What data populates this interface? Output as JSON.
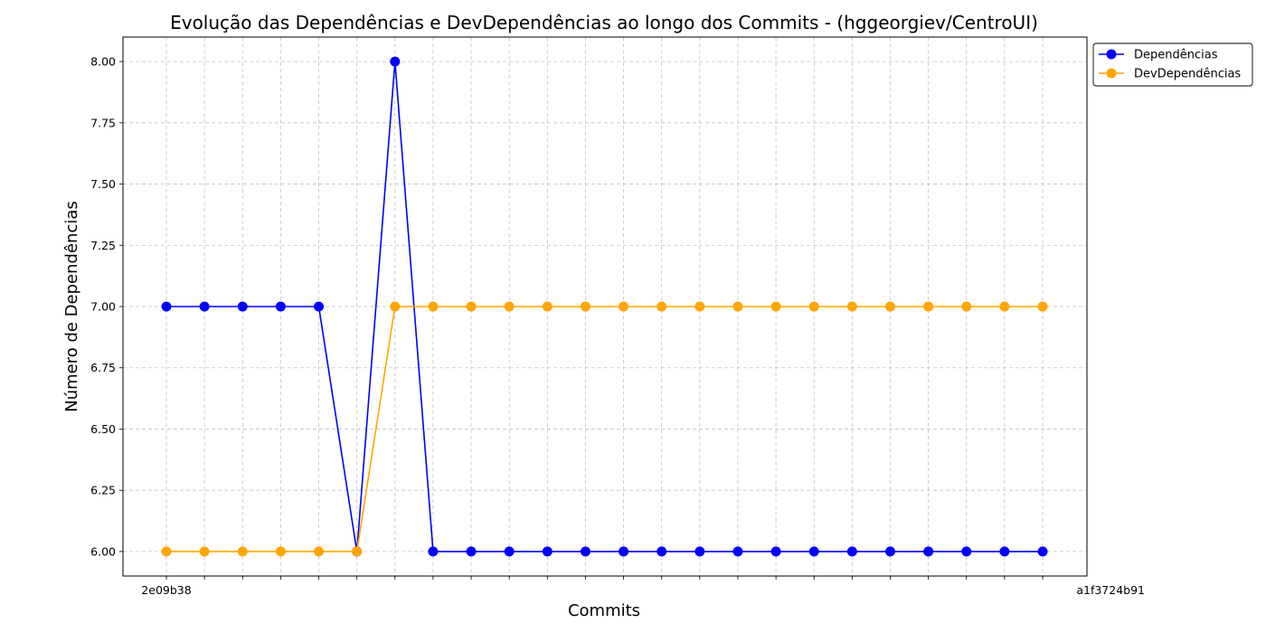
{
  "chart_data": {
    "type": "line",
    "title": "Evolução das Dependências e DevDependências ao longo dos Commits - (hggeorgiev/CentroUI)",
    "xlabel": "Commits",
    "ylabel": "Número de Dependências",
    "first_commit_label": "2e09b38",
    "last_commit_label": "a1f3724b91",
    "ylim": [
      5.9,
      8.1
    ],
    "yticks": [
      "6.00",
      "6.25",
      "6.50",
      "6.75",
      "7.00",
      "7.25",
      "7.50",
      "7.75",
      "8.00"
    ],
    "grid": true,
    "legend_position": "top-right-outside",
    "series": [
      {
        "name": "Dependências",
        "color": "#0000ff",
        "values": [
          7,
          7,
          7,
          7,
          7,
          6,
          8,
          6,
          6,
          6,
          6,
          6,
          6,
          6,
          6,
          6,
          6,
          6,
          6,
          6,
          6,
          6,
          6,
          6
        ]
      },
      {
        "name": "DevDependências",
        "color": "#ffa500",
        "values": [
          6,
          6,
          6,
          6,
          6,
          6,
          7,
          7,
          7,
          7,
          7,
          7,
          7,
          7,
          7,
          7,
          7,
          7,
          7,
          7,
          7,
          7,
          7,
          7
        ]
      }
    ]
  }
}
